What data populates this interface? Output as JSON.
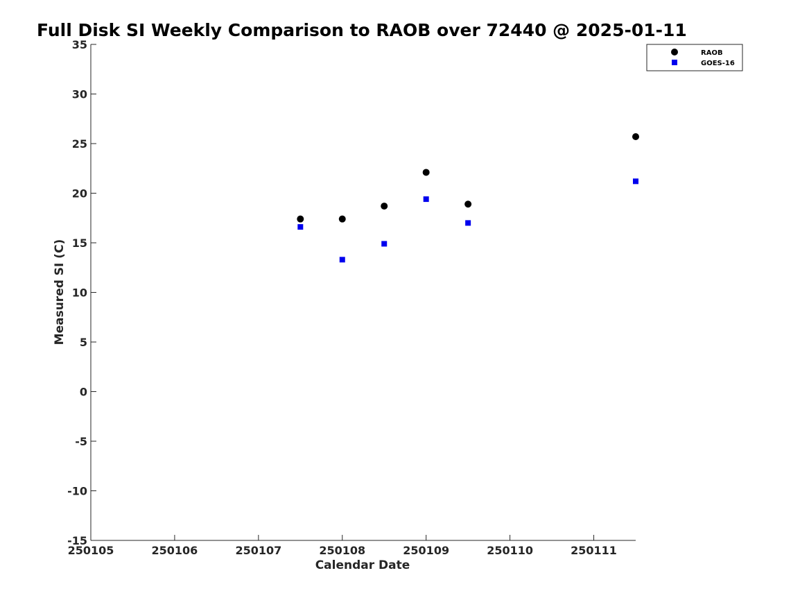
{
  "chart_data": {
    "type": "scatter",
    "title": "Full Disk SI Weekly Comparison to RAOB over 72440 @ 2025-01-11",
    "xlabel": "Calendar Date",
    "ylabel": "Measured SI (C)",
    "xlim": [
      250105,
      250111.5
    ],
    "ylim": [
      -15,
      35
    ],
    "x_ticks": [
      250105,
      250106,
      250107,
      250108,
      250109,
      250110,
      250111
    ],
    "x_tick_labels": [
      "250105",
      "250106",
      "250107",
      "250108",
      "250109",
      "250110",
      "250111"
    ],
    "y_ticks": [
      -15,
      -10,
      -5,
      0,
      5,
      10,
      15,
      20,
      25,
      30,
      35
    ],
    "y_tick_labels": [
      "-15",
      "-10",
      "-5",
      "0",
      "5",
      "10",
      "15",
      "20",
      "25",
      "30",
      "35"
    ],
    "grid": false,
    "legend_position": "top-right",
    "series": [
      {
        "name": "RAOB",
        "marker": "circle",
        "color": "#000000",
        "x": [
          250107.5,
          250108,
          250108.5,
          250109,
          250109.5,
          250111.5
        ],
        "y": [
          17.4,
          17.4,
          18.7,
          22.1,
          18.9,
          25.7
        ]
      },
      {
        "name": "GOES-16",
        "marker": "square",
        "color": "#0000ee",
        "x": [
          250107.5,
          250108,
          250108.5,
          250109,
          250109.5,
          250111.5
        ],
        "y": [
          16.6,
          13.3,
          14.9,
          19.4,
          17.0,
          21.2
        ]
      }
    ]
  }
}
